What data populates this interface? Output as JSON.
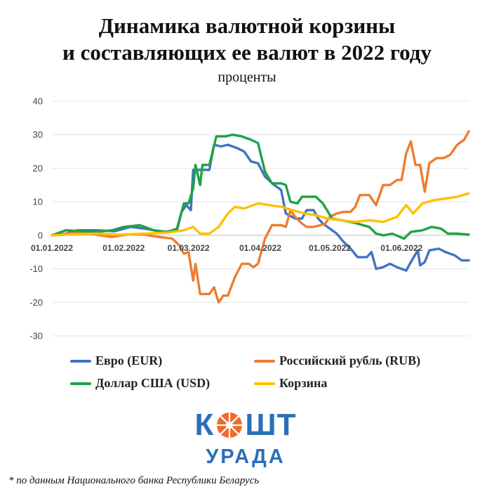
{
  "header": {
    "title_line1": "Динамика валютной корзины",
    "title_line2": "и составляющих ее валют в 2022 году",
    "subtitle": "проценты"
  },
  "chart_data": {
    "type": "line",
    "title": "Динамика валютной корзины и составляющих ее валют в 2022 году",
    "subtitle": "проценты",
    "xlabel": "",
    "ylabel": "",
    "ylim": [
      -30,
      40
    ],
    "yticks": [
      40,
      30,
      20,
      10,
      0,
      -10,
      -20,
      -30
    ],
    "xlim": [
      "2022-01-01",
      "2022-06-30"
    ],
    "xticks": [
      "01.01.2022",
      "01.02.2022",
      "01.03.2022",
      "01.04.2022",
      "01.05.2022",
      "01.06.2022"
    ],
    "xtick_dates": [
      "2022-01-01",
      "2022-02-01",
      "2022-03-01",
      "2022-04-01",
      "2022-05-01",
      "2022-06-01"
    ],
    "grid": "horizontal",
    "legend_position": "bottom",
    "series": [
      {
        "name": "Евро (EUR)",
        "color": "#4472c4",
        "points": [
          [
            "2022-01-01",
            0
          ],
          [
            "2022-01-07",
            0.5
          ],
          [
            "2022-01-12",
            1.5
          ],
          [
            "2022-01-20",
            1.5
          ],
          [
            "2022-01-28",
            1.2
          ],
          [
            "2022-02-04",
            2.5
          ],
          [
            "2022-02-10",
            2.0
          ],
          [
            "2022-02-18",
            1.0
          ],
          [
            "2022-02-24",
            1.5
          ],
          [
            "2022-02-26",
            7.0
          ],
          [
            "2022-02-28",
            9.0
          ],
          [
            "2022-03-02",
            7.5
          ],
          [
            "2022-03-03",
            19.5
          ],
          [
            "2022-03-05",
            19.5
          ],
          [
            "2022-03-10",
            19.5
          ],
          [
            "2022-03-12",
            27.0
          ],
          [
            "2022-03-15",
            26.5
          ],
          [
            "2022-03-18",
            27.0
          ],
          [
            "2022-03-22",
            26.0
          ],
          [
            "2022-03-25",
            25.0
          ],
          [
            "2022-03-28",
            22.0
          ],
          [
            "2022-03-31",
            21.5
          ],
          [
            "2022-04-03",
            17.5
          ],
          [
            "2022-04-07",
            15.0
          ],
          [
            "2022-04-10",
            13.5
          ],
          [
            "2022-04-12",
            6.5
          ],
          [
            "2022-04-16",
            5.0
          ],
          [
            "2022-04-19",
            5.0
          ],
          [
            "2022-04-21",
            7.5
          ],
          [
            "2022-04-24",
            7.5
          ],
          [
            "2022-04-26",
            5.0
          ],
          [
            "2022-04-28",
            3.5
          ],
          [
            "2022-04-30",
            2.5
          ],
          [
            "2022-05-04",
            0.5
          ],
          [
            "2022-05-07",
            -2.0
          ],
          [
            "2022-05-10",
            -4.0
          ],
          [
            "2022-05-13",
            -6.5
          ],
          [
            "2022-05-17",
            -6.5
          ],
          [
            "2022-05-19",
            -5.0
          ],
          [
            "2022-05-21",
            -10.0
          ],
          [
            "2022-05-24",
            -9.5
          ],
          [
            "2022-05-27",
            -8.5
          ],
          [
            "2022-05-30",
            -9.5
          ],
          [
            "2022-06-03",
            -10.5
          ],
          [
            "2022-06-05",
            -8.0
          ],
          [
            "2022-06-08",
            -4.5
          ],
          [
            "2022-06-09",
            -9.0
          ],
          [
            "2022-06-11",
            -8.0
          ],
          [
            "2022-06-13",
            -4.5
          ],
          [
            "2022-06-17",
            -4.0
          ],
          [
            "2022-06-20",
            -5.0
          ],
          [
            "2022-06-24",
            -6.0
          ],
          [
            "2022-06-27",
            -7.5
          ],
          [
            "2022-06-30",
            -7.5
          ]
        ]
      },
      {
        "name": "Российский рубль (RUB)",
        "color": "#ed7d31",
        "points": [
          [
            "2022-01-01",
            0
          ],
          [
            "2022-01-08",
            0.5
          ],
          [
            "2022-01-14",
            0.8
          ],
          [
            "2022-01-22",
            0
          ],
          [
            "2022-01-27",
            -0.5
          ],
          [
            "2022-02-03",
            0.3
          ],
          [
            "2022-02-10",
            0.2
          ],
          [
            "2022-02-16",
            -0.5
          ],
          [
            "2022-02-22",
            -1.0
          ],
          [
            "2022-02-25",
            -3.0
          ],
          [
            "2022-02-27",
            -5.5
          ],
          [
            "2022-03-01",
            -5.0
          ],
          [
            "2022-03-03",
            -13.5
          ],
          [
            "2022-03-04",
            -8.5
          ],
          [
            "2022-03-06",
            -17.5
          ],
          [
            "2022-03-10",
            -17.5
          ],
          [
            "2022-03-12",
            -15.5
          ],
          [
            "2022-03-14",
            -20.0
          ],
          [
            "2022-03-16",
            -18.0
          ],
          [
            "2022-03-18",
            -18.0
          ],
          [
            "2022-03-21",
            -12.5
          ],
          [
            "2022-03-24",
            -8.5
          ],
          [
            "2022-03-27",
            -8.5
          ],
          [
            "2022-03-29",
            -9.5
          ],
          [
            "2022-03-31",
            -8.5
          ],
          [
            "2022-04-03",
            -1.0
          ],
          [
            "2022-04-06",
            3.0
          ],
          [
            "2022-04-10",
            3.0
          ],
          [
            "2022-04-12",
            2.5
          ],
          [
            "2022-04-14",
            7.5
          ],
          [
            "2022-04-16",
            5.5
          ],
          [
            "2022-04-19",
            3.5
          ],
          [
            "2022-04-21",
            2.5
          ],
          [
            "2022-04-24",
            2.5
          ],
          [
            "2022-04-27",
            3.0
          ],
          [
            "2022-04-29",
            3.5
          ],
          [
            "2022-05-01",
            5.5
          ],
          [
            "2022-05-04",
            6.5
          ],
          [
            "2022-05-07",
            7.0
          ],
          [
            "2022-05-10",
            7.0
          ],
          [
            "2022-05-12",
            8.5
          ],
          [
            "2022-05-14",
            12.0
          ],
          [
            "2022-05-18",
            12.0
          ],
          [
            "2022-05-21",
            9.0
          ],
          [
            "2022-05-24",
            15.0
          ],
          [
            "2022-05-27",
            15.0
          ],
          [
            "2022-05-30",
            16.5
          ],
          [
            "2022-06-01",
            16.5
          ],
          [
            "2022-06-03",
            24.5
          ],
          [
            "2022-06-05",
            28.0
          ],
          [
            "2022-06-07",
            21.0
          ],
          [
            "2022-06-09",
            21.0
          ],
          [
            "2022-06-11",
            13.0
          ],
          [
            "2022-06-13",
            21.5
          ],
          [
            "2022-06-16",
            23.0
          ],
          [
            "2022-06-19",
            23.0
          ],
          [
            "2022-06-22",
            24.0
          ],
          [
            "2022-06-25",
            27.0
          ],
          [
            "2022-06-28",
            28.5
          ],
          [
            "2022-06-30",
            31.0
          ]
        ]
      },
      {
        "name": "Доллар США (USD)",
        "color": "#1ea345",
        "points": [
          [
            "2022-01-01",
            0
          ],
          [
            "2022-01-07",
            1.5
          ],
          [
            "2022-01-14",
            1.2
          ],
          [
            "2022-01-20",
            1.0
          ],
          [
            "2022-01-27",
            1.5
          ],
          [
            "2022-02-01",
            2.5
          ],
          [
            "2022-02-08",
            3.0
          ],
          [
            "2022-02-14",
            1.5
          ],
          [
            "2022-02-20",
            1.0
          ],
          [
            "2022-02-24",
            2.0
          ],
          [
            "2022-02-27",
            9.5
          ],
          [
            "2022-03-01",
            9.5
          ],
          [
            "2022-03-03",
            14.0
          ],
          [
            "2022-03-04",
            21.0
          ],
          [
            "2022-03-06",
            15.0
          ],
          [
            "2022-03-07",
            21.0
          ],
          [
            "2022-03-10",
            21.0
          ],
          [
            "2022-03-13",
            29.5
          ],
          [
            "2022-03-17",
            29.5
          ],
          [
            "2022-03-20",
            30.0
          ],
          [
            "2022-03-24",
            29.5
          ],
          [
            "2022-03-28",
            28.5
          ],
          [
            "2022-03-31",
            27.5
          ],
          [
            "2022-04-03",
            19.0
          ],
          [
            "2022-04-06",
            15.5
          ],
          [
            "2022-04-10",
            15.5
          ],
          [
            "2022-04-12",
            15.0
          ],
          [
            "2022-04-14",
            10.0
          ],
          [
            "2022-04-17",
            9.5
          ],
          [
            "2022-04-19",
            11.5
          ],
          [
            "2022-04-25",
            11.5
          ],
          [
            "2022-04-28",
            9.5
          ],
          [
            "2022-05-02",
            5.0
          ],
          [
            "2022-05-06",
            4.5
          ],
          [
            "2022-05-10",
            4.0
          ],
          [
            "2022-05-13",
            3.5
          ],
          [
            "2022-05-18",
            2.5
          ],
          [
            "2022-05-21",
            0.5
          ],
          [
            "2022-05-24",
            0
          ],
          [
            "2022-05-28",
            0.5
          ],
          [
            "2022-06-02",
            -1.0
          ],
          [
            "2022-06-05",
            1.0
          ],
          [
            "2022-06-10",
            1.5
          ],
          [
            "2022-06-14",
            2.5
          ],
          [
            "2022-06-18",
            2.0
          ],
          [
            "2022-06-21",
            0.5
          ],
          [
            "2022-06-25",
            0.5
          ],
          [
            "2022-06-30",
            0.2
          ]
        ]
      },
      {
        "name": "Корзина",
        "color": "#ffc000",
        "points": [
          [
            "2022-01-01",
            0
          ],
          [
            "2022-01-10",
            0.3
          ],
          [
            "2022-01-20",
            0.5
          ],
          [
            "2022-01-30",
            0.2
          ],
          [
            "2022-02-10",
            0.5
          ],
          [
            "2022-02-20",
            0.8
          ],
          [
            "2022-02-27",
            1.5
          ],
          [
            "2022-03-03",
            2.5
          ],
          [
            "2022-03-06",
            0.5
          ],
          [
            "2022-03-10",
            0.5
          ],
          [
            "2022-03-14",
            2.5
          ],
          [
            "2022-03-18",
            6.5
          ],
          [
            "2022-03-21",
            8.5
          ],
          [
            "2022-03-25",
            8.0
          ],
          [
            "2022-03-31",
            9.5
          ],
          [
            "2022-04-05",
            9.0
          ],
          [
            "2022-04-10",
            8.5
          ],
          [
            "2022-04-15",
            7.5
          ],
          [
            "2022-04-20",
            6.5
          ],
          [
            "2022-04-25",
            6.0
          ],
          [
            "2022-04-30",
            5.0
          ],
          [
            "2022-05-06",
            4.5
          ],
          [
            "2022-05-12",
            4.0
          ],
          [
            "2022-05-18",
            4.5
          ],
          [
            "2022-05-24",
            4.0
          ],
          [
            "2022-05-30",
            5.5
          ],
          [
            "2022-06-03",
            9.0
          ],
          [
            "2022-06-06",
            6.5
          ],
          [
            "2022-06-10",
            9.5
          ],
          [
            "2022-06-15",
            10.5
          ],
          [
            "2022-06-20",
            11.0
          ],
          [
            "2022-06-25",
            11.5
          ],
          [
            "2022-06-30",
            12.5
          ]
        ]
      }
    ]
  },
  "legend": {
    "eur_label": "Евро (EUR)",
    "rub_label": "Российский рубль (RUB)",
    "usd_label": "Доллар США (USD)",
    "basket_label": "Корзина"
  },
  "logo": {
    "top_left": "К",
    "top_right": "ШТ",
    "bottom": "УРАДА",
    "color": "#2b6fb8",
    "accent_color": "#ef6a2d"
  },
  "footnote": "* по данным Национального банка Республики Беларусь"
}
